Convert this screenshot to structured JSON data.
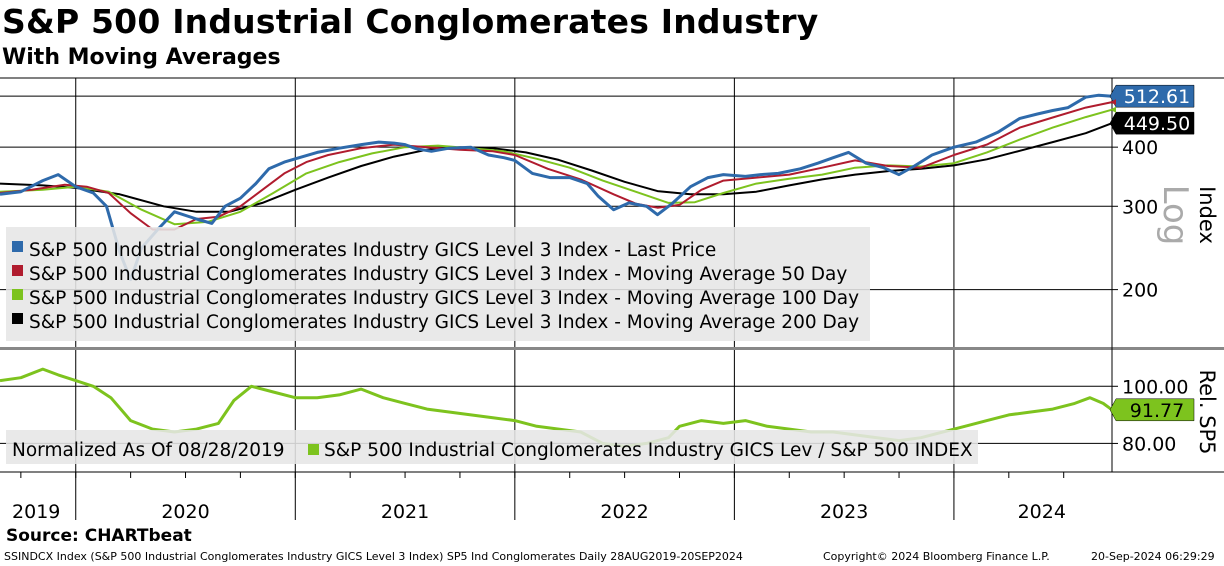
{
  "title": "S&P 500 Industrial Conglomerates Industry",
  "subtitle": "With Moving Averages",
  "source": "Source: CHARTbeat",
  "footer": {
    "left": "SSINDCX Index (S&P 500 Industrial Conglomerates Industry GICS Level 3 Index) SP5 Ind Conglomerates  Daily 28AUG2019-20SEP2024",
    "copyright": "Copyright© 2024 Bloomberg Finance L.P.",
    "timestamp": "20-Sep-2024 06:29:29"
  },
  "chart_data": [
    {
      "type": "line",
      "scale": "log",
      "ylabel": "Index",
      "scale_label": "Log",
      "yticks": [
        200,
        300,
        400
      ],
      "ylim": [
        155,
        560
      ],
      "xlabels": [
        "2019",
        "2020",
        "2021",
        "2022",
        "2023",
        "2024"
      ],
      "xrange": [
        2019.655,
        2024.72
      ],
      "grid": true,
      "legend_position": "bottom-left",
      "callouts": [
        {
          "value": "512.61",
          "y": 512.61,
          "color": "#2e6aab",
          "text_color": "#ffffff"
        },
        {
          "value": "449.50",
          "y": 449.5,
          "color": "#000000",
          "text_color": "#ffffff"
        }
      ],
      "series": [
        {
          "name": "S&P 500 Industrial Conglomerates Industry GICS Level 3 Index - Last Price",
          "color": "#2e6aab",
          "points": [
            [
              2019.655,
              318
            ],
            [
              2019.75,
              322
            ],
            [
              2019.85,
              340
            ],
            [
              2019.92,
              350
            ],
            [
              2020.0,
              330
            ],
            [
              2020.08,
              320
            ],
            [
              2020.14,
              300
            ],
            [
              2020.2,
              240
            ],
            [
              2020.25,
              210
            ],
            [
              2020.3,
              245
            ],
            [
              2020.38,
              270
            ],
            [
              2020.45,
              292
            ],
            [
              2020.55,
              282
            ],
            [
              2020.62,
              276
            ],
            [
              2020.68,
              300
            ],
            [
              2020.75,
              312
            ],
            [
              2020.82,
              335
            ],
            [
              2020.88,
              360
            ],
            [
              2020.95,
              372
            ],
            [
              2021.0,
              378
            ],
            [
              2021.1,
              390
            ],
            [
              2021.2,
              398
            ],
            [
              2021.3,
              405
            ],
            [
              2021.38,
              410
            ],
            [
              2021.45,
              408
            ],
            [
              2021.5,
              405
            ],
            [
              2021.55,
              397
            ],
            [
              2021.62,
              392
            ],
            [
              2021.7,
              398
            ],
            [
              2021.8,
              400
            ],
            [
              2021.88,
              385
            ],
            [
              2021.95,
              380
            ],
            [
              2022.0,
              375
            ],
            [
              2022.08,
              352
            ],
            [
              2022.16,
              345
            ],
            [
              2022.25,
              345
            ],
            [
              2022.33,
              335
            ],
            [
              2022.38,
              315
            ],
            [
              2022.45,
              295
            ],
            [
              2022.52,
              305
            ],
            [
              2022.6,
              300
            ],
            [
              2022.65,
              288
            ],
            [
              2022.72,
              305
            ],
            [
              2022.8,
              330
            ],
            [
              2022.88,
              345
            ],
            [
              2022.95,
              350
            ],
            [
              2023.05,
              347
            ],
            [
              2023.12,
              350
            ],
            [
              2023.2,
              352
            ],
            [
              2023.3,
              360
            ],
            [
              2023.38,
              370
            ],
            [
              2023.45,
              380
            ],
            [
              2023.52,
              390
            ],
            [
              2023.6,
              370
            ],
            [
              2023.68,
              362
            ],
            [
              2023.75,
              350
            ],
            [
              2023.82,
              365
            ],
            [
              2023.9,
              385
            ],
            [
              2024.0,
              400
            ],
            [
              2024.1,
              410
            ],
            [
              2024.2,
              430
            ],
            [
              2024.3,
              460
            ],
            [
              2024.38,
              470
            ],
            [
              2024.45,
              478
            ],
            [
              2024.52,
              485
            ],
            [
              2024.6,
              510
            ],
            [
              2024.66,
              515
            ],
            [
              2024.72,
              512.61
            ]
          ]
        },
        {
          "name": "S&P 500 Industrial Conglomerates Industry GICS Level 3 Index - Moving Average 50 Day",
          "color": "#b01c2e",
          "points": [
            [
              2019.655,
              320
            ],
            [
              2019.8,
              325
            ],
            [
              2019.95,
              333
            ],
            [
              2020.05,
              330
            ],
            [
              2020.15,
              320
            ],
            [
              2020.25,
              290
            ],
            [
              2020.35,
              268
            ],
            [
              2020.45,
              268
            ],
            [
              2020.55,
              282
            ],
            [
              2020.65,
              285
            ],
            [
              2020.75,
              300
            ],
            [
              2020.85,
              325
            ],
            [
              2020.95,
              352
            ],
            [
              2021.05,
              372
            ],
            [
              2021.15,
              385
            ],
            [
              2021.3,
              398
            ],
            [
              2021.45,
              405
            ],
            [
              2021.6,
              400
            ],
            [
              2021.75,
              395
            ],
            [
              2021.9,
              392
            ],
            [
              2022.0,
              385
            ],
            [
              2022.15,
              360
            ],
            [
              2022.3,
              342
            ],
            [
              2022.45,
              318
            ],
            [
              2022.55,
              304
            ],
            [
              2022.65,
              298
            ],
            [
              2022.75,
              302
            ],
            [
              2022.85,
              325
            ],
            [
              2022.95,
              340
            ],
            [
              2023.1,
              345
            ],
            [
              2023.25,
              350
            ],
            [
              2023.4,
              362
            ],
            [
              2023.55,
              375
            ],
            [
              2023.7,
              365
            ],
            [
              2023.85,
              362
            ],
            [
              2024.0,
              385
            ],
            [
              2024.15,
              405
            ],
            [
              2024.3,
              440
            ],
            [
              2024.45,
              462
            ],
            [
              2024.6,
              485
            ],
            [
              2024.72,
              498
            ]
          ]
        },
        {
          "name": "S&P 500 Industrial Conglomerates Industry GICS Level 3 Index - Moving Average 100 Day",
          "color": "#7dc31e",
          "points": [
            [
              2019.655,
              322
            ],
            [
              2019.85,
              325
            ],
            [
              2020.0,
              330
            ],
            [
              2020.15,
              322
            ],
            [
              2020.3,
              295
            ],
            [
              2020.45,
              275
            ],
            [
              2020.6,
              278
            ],
            [
              2020.75,
              292
            ],
            [
              2020.9,
              320
            ],
            [
              2021.05,
              352
            ],
            [
              2021.2,
              372
            ],
            [
              2021.35,
              388
            ],
            [
              2021.5,
              400
            ],
            [
              2021.65,
              403
            ],
            [
              2021.8,
              398
            ],
            [
              2021.95,
              392
            ],
            [
              2022.1,
              378
            ],
            [
              2022.25,
              362
            ],
            [
              2022.4,
              340
            ],
            [
              2022.55,
              322
            ],
            [
              2022.7,
              305
            ],
            [
              2022.82,
              306
            ],
            [
              2022.95,
              320
            ],
            [
              2023.1,
              335
            ],
            [
              2023.25,
              343
            ],
            [
              2023.4,
              350
            ],
            [
              2023.55,
              362
            ],
            [
              2023.7,
              366
            ],
            [
              2023.85,
              364
            ],
            [
              2024.0,
              370
            ],
            [
              2024.15,
              390
            ],
            [
              2024.3,
              415
            ],
            [
              2024.45,
              440
            ],
            [
              2024.6,
              463
            ],
            [
              2024.72,
              480
            ]
          ]
        },
        {
          "name": "S&P 500 Industrial Conglomerates Industry GICS Level 3 Index - Moving Average 200 Day",
          "color": "#000000",
          "points": [
            [
              2019.655,
              335
            ],
            [
              2019.85,
              332
            ],
            [
              2020.0,
              328
            ],
            [
              2020.2,
              318
            ],
            [
              2020.4,
              300
            ],
            [
              2020.55,
              292
            ],
            [
              2020.7,
              292
            ],
            [
              2020.85,
              305
            ],
            [
              2021.0,
              325
            ],
            [
              2021.15,
              345
            ],
            [
              2021.3,
              365
            ],
            [
              2021.45,
              382
            ],
            [
              2021.6,
              395
            ],
            [
              2021.75,
              400
            ],
            [
              2021.9,
              398
            ],
            [
              2022.05,
              390
            ],
            [
              2022.2,
              376
            ],
            [
              2022.35,
              357
            ],
            [
              2022.5,
              338
            ],
            [
              2022.65,
              323
            ],
            [
              2022.8,
              318
            ],
            [
              2022.95,
              318
            ],
            [
              2023.1,
              322
            ],
            [
              2023.25,
              332
            ],
            [
              2023.4,
              342
            ],
            [
              2023.55,
              350
            ],
            [
              2023.7,
              356
            ],
            [
              2023.85,
              360
            ],
            [
              2024.0,
              366
            ],
            [
              2024.15,
              377
            ],
            [
              2024.3,
              393
            ],
            [
              2024.45,
              410
            ],
            [
              2024.6,
              428
            ],
            [
              2024.72,
              449.5
            ]
          ]
        }
      ]
    },
    {
      "type": "line",
      "ylabel": "Rel. SP5",
      "yticks": [
        80,
        100
      ],
      "ylim": [
        70,
        112
      ],
      "legend_position": "bottom-left",
      "normalized_label": "Normalized As Of 08/28/2019",
      "callouts": [
        {
          "value": "91.77",
          "y": 91.77,
          "color": "#7dc31e",
          "text_color": "#000000"
        }
      ],
      "series": [
        {
          "name": "S&P 500 Industrial Conglomerates Industry GICS Lev / S&P 500 INDEX",
          "color": "#7dc31e",
          "points": [
            [
              2019.655,
              102
            ],
            [
              2019.75,
              103
            ],
            [
              2019.85,
              106
            ],
            [
              2019.92,
              104
            ],
            [
              2020.0,
              102
            ],
            [
              2020.08,
              100
            ],
            [
              2020.16,
              96
            ],
            [
              2020.25,
              88
            ],
            [
              2020.35,
              85
            ],
            [
              2020.45,
              84
            ],
            [
              2020.55,
              85
            ],
            [
              2020.65,
              87
            ],
            [
              2020.72,
              95
            ],
            [
              2020.8,
              100
            ],
            [
              2020.9,
              98
            ],
            [
              2021.0,
              96
            ],
            [
              2021.1,
              96
            ],
            [
              2021.2,
              97
            ],
            [
              2021.3,
              99
            ],
            [
              2021.4,
              96
            ],
            [
              2021.5,
              94
            ],
            [
              2021.6,
              92
            ],
            [
              2021.7,
              91
            ],
            [
              2021.8,
              90
            ],
            [
              2021.9,
              89
            ],
            [
              2022.0,
              88
            ],
            [
              2022.1,
              86
            ],
            [
              2022.2,
              85
            ],
            [
              2022.3,
              84
            ],
            [
              2022.4,
              80
            ],
            [
              2022.5,
              79
            ],
            [
              2022.6,
              80
            ],
            [
              2022.7,
              82
            ],
            [
              2022.75,
              86
            ],
            [
              2022.85,
              88
            ],
            [
              2022.95,
              87
            ],
            [
              2023.05,
              88
            ],
            [
              2023.15,
              86
            ],
            [
              2023.25,
              85
            ],
            [
              2023.35,
              84
            ],
            [
              2023.45,
              84
            ],
            [
              2023.55,
              83
            ],
            [
              2023.65,
              82
            ],
            [
              2023.75,
              81
            ],
            [
              2023.85,
              82
            ],
            [
              2023.95,
              84
            ],
            [
              2024.05,
              86
            ],
            [
              2024.15,
              88
            ],
            [
              2024.25,
              90
            ],
            [
              2024.35,
              91
            ],
            [
              2024.45,
              92
            ],
            [
              2024.55,
              94
            ],
            [
              2024.62,
              96
            ],
            [
              2024.68,
              94
            ],
            [
              2024.72,
              91.77
            ]
          ]
        }
      ]
    }
  ]
}
